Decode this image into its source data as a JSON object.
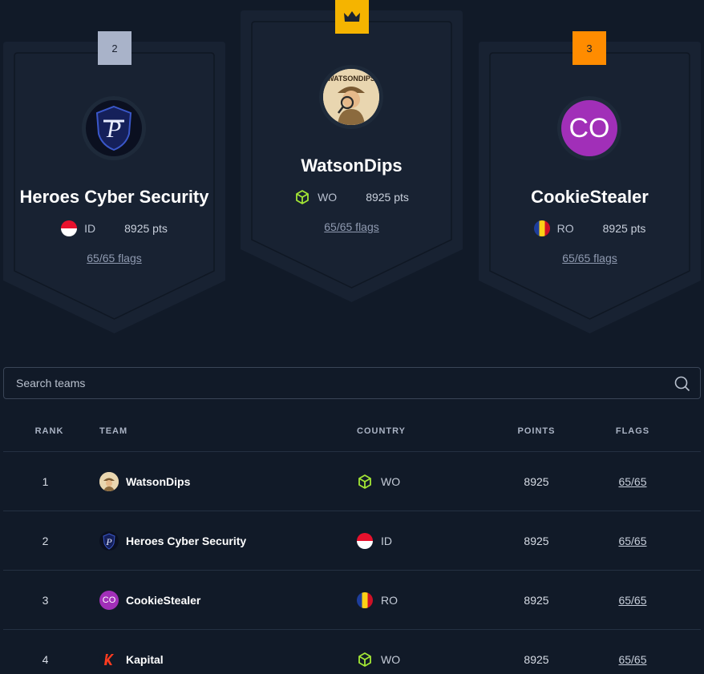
{
  "podium": {
    "second": {
      "rank_label": "2",
      "name": "Heroes Cyber Security",
      "country": "ID",
      "points": "8925 pts",
      "flags": "65/65 flags",
      "badge_color": "#a9b3c9"
    },
    "first": {
      "rank_icon": "crown-icon",
      "name": "WatsonDips",
      "country": "WO",
      "points": "8925 pts",
      "flags": "65/65 flags",
      "badge_color": "#f5b400",
      "avatar_text": "WATSONDIPS"
    },
    "third": {
      "rank_label": "3",
      "name": "CookieStealer",
      "country": "RO",
      "points": "8925 pts",
      "flags": "65/65 flags",
      "badge_color": "#ff8c00",
      "avatar_text": "CO",
      "avatar_color": "#a12fb8"
    }
  },
  "search": {
    "placeholder": "Search teams",
    "icon": "search-icon"
  },
  "table": {
    "headers": {
      "rank": "RANK",
      "team": "TEAM",
      "country": "COUNTRY",
      "points": "POINTS",
      "flags": "FLAGS"
    },
    "rows": [
      {
        "rank": "1",
        "team": "WatsonDips",
        "country": "WO",
        "points": "8925",
        "flags": "65/65"
      },
      {
        "rank": "2",
        "team": "Heroes Cyber Security",
        "country": "ID",
        "points": "8925",
        "flags": "65/65"
      },
      {
        "rank": "3",
        "team": "CookieStealer",
        "country": "RO",
        "points": "8925",
        "flags": "65/65",
        "avatar_text": "CO"
      },
      {
        "rank": "4",
        "team": "Kapital",
        "country": "WO",
        "points": "8925",
        "flags": "65/65"
      }
    ]
  },
  "colors": {
    "background": "#111a28",
    "card": "#182232",
    "globe_icon": "#a3e635",
    "border": "#243042"
  }
}
